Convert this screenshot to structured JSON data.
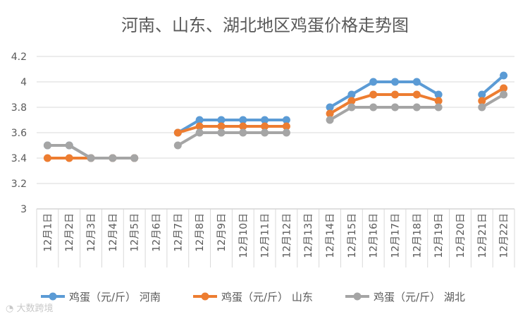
{
  "chart_data": {
    "type": "line",
    "title": "河南、山东、湖北地区鸡蛋价格走势图",
    "xlabel": "",
    "ylabel": "",
    "ylim": [
      3,
      4.2
    ],
    "yticks": [
      "3",
      "3.2",
      "3.4",
      "3.6",
      "3.8",
      "4",
      "4.2"
    ],
    "grid": true,
    "legend_position": "bottom",
    "categories": [
      "12月1日",
      "12月2日",
      "12月3日",
      "12月4日",
      "12月5日",
      "12月6日",
      "12月7日",
      "12月8日",
      "12月9日",
      "12月10日",
      "12月11日",
      "12月12日",
      "12月13日",
      "12月14日",
      "12月15日",
      "12月16日",
      "12月17日",
      "12月18日",
      "12月19日",
      "12月20日",
      "12月21日",
      "12月22日"
    ],
    "series": [
      {
        "name": "鸡蛋（元/斤） 河南",
        "color": "#5B9BD5",
        "values": [
          3.5,
          3.5,
          3.4,
          3.4,
          3.4,
          null,
          3.6,
          3.7,
          3.7,
          3.7,
          3.7,
          3.7,
          null,
          3.8,
          3.9,
          4.0,
          4.0,
          4.0,
          3.9,
          null,
          3.9,
          4.05
        ]
      },
      {
        "name": "鸡蛋（元/斤） 山东",
        "color": "#ED7D31",
        "values": [
          3.4,
          3.4,
          3.4,
          3.4,
          3.4,
          null,
          3.6,
          3.65,
          3.65,
          3.65,
          3.65,
          3.65,
          null,
          3.75,
          3.85,
          3.9,
          3.9,
          3.9,
          3.85,
          null,
          3.85,
          3.95
        ]
      },
      {
        "name": "鸡蛋（元/斤） 湖北",
        "color": "#A5A5A5",
        "values": [
          3.5,
          3.5,
          3.4,
          3.4,
          3.4,
          null,
          3.5,
          3.6,
          3.6,
          3.6,
          3.6,
          3.6,
          null,
          3.7,
          3.8,
          3.8,
          3.8,
          3.8,
          3.8,
          null,
          3.8,
          3.9
        ]
      }
    ]
  },
  "watermark": "大数跨境"
}
